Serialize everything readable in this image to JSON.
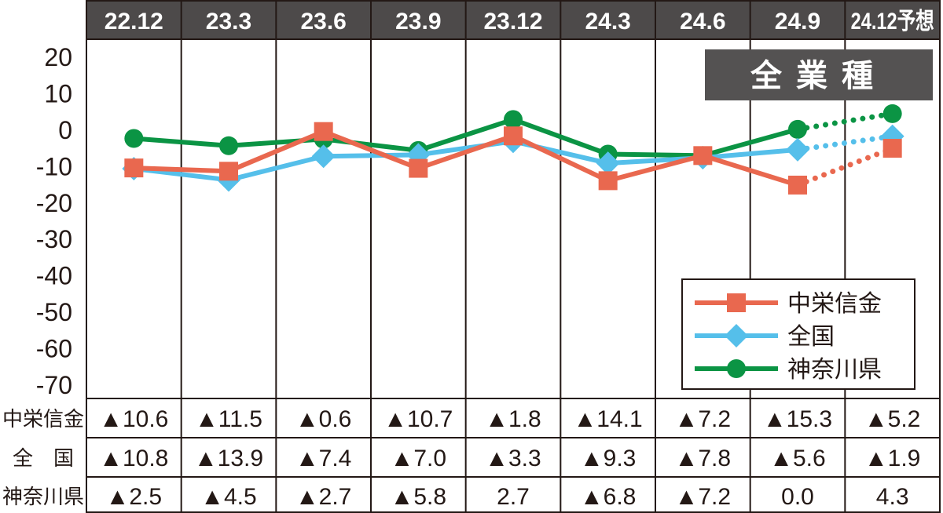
{
  "chart_data": {
    "type": "line",
    "title": "全業種",
    "categories": [
      "22.12",
      "23.3",
      "23.6",
      "23.9",
      "23.12",
      "24.3",
      "24.6",
      "24.9",
      "24.12予想"
    ],
    "yticks": [
      "20",
      "10",
      "0",
      "-10",
      "-20",
      "-30",
      "-40",
      "-50",
      "-60",
      "-70"
    ],
    "ylim": [
      -70,
      20
    ],
    "forecast_from_index": 7,
    "series": [
      {
        "name": "中栄信金",
        "color": "#e9684f",
        "marker": "square",
        "values": [
          -10.6,
          -11.5,
          -0.6,
          -10.7,
          -1.8,
          -14.1,
          -7.2,
          -15.3,
          -5.2
        ]
      },
      {
        "name": "全国",
        "color": "#55bfea",
        "marker": "diamond",
        "values": [
          -10.8,
          -13.9,
          -7.4,
          -7.0,
          -3.3,
          -9.3,
          -7.8,
          -5.6,
          -1.9
        ]
      },
      {
        "name": "神奈川県",
        "color": "#0b9444",
        "marker": "circle",
        "values": [
          -2.5,
          -4.5,
          -2.7,
          -5.8,
          2.7,
          -6.8,
          -7.2,
          0.0,
          4.3
        ]
      }
    ],
    "table": [
      {
        "label": "中栄信金",
        "cells": [
          "▲10.6",
          "▲11.5",
          "▲0.6",
          "▲10.7",
          "▲1.8",
          "▲14.1",
          "▲7.2",
          "▲15.3",
          "▲5.2"
        ]
      },
      {
        "label": "全　国",
        "cells": [
          "▲10.8",
          "▲13.9",
          "▲7.4",
          "▲7.0",
          "▲3.3",
          "▲9.3",
          "▲7.8",
          "▲5.6",
          "▲1.9"
        ]
      },
      {
        "label": "神奈川県",
        "cells": [
          "▲2.5",
          "▲4.5",
          "▲2.7",
          "▲5.8",
          "2.7",
          "▲6.8",
          "▲7.2",
          "0.0",
          "4.3"
        ]
      }
    ]
  }
}
